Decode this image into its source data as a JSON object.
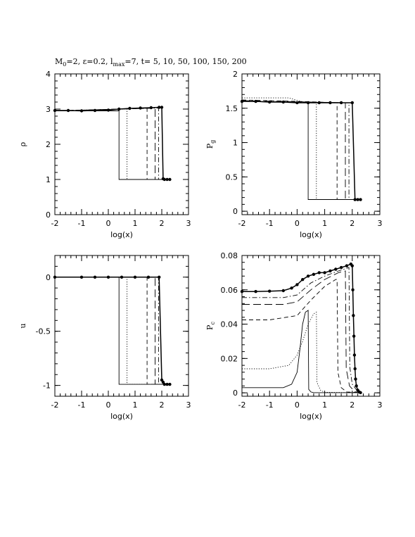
{
  "figure": {
    "title_parts": {
      "m": "M",
      "m_sub": "0",
      "eps": "=2, ε=0.2, l",
      "l_sub": "max",
      "rest": "=7, t= 5, 10, 50, 100, 150, 200"
    }
  },
  "chart_data": [
    {
      "type": "line",
      "id": "rho",
      "ylabel": "ρ",
      "xlabel": "log(x)",
      "xlim": [
        -2,
        3
      ],
      "ylim": [
        0,
        4
      ],
      "xticks": [
        "-2",
        "-1",
        "0",
        "1",
        "2",
        "3"
      ],
      "yticks": [
        "0",
        "1",
        "2",
        "3",
        "4"
      ],
      "series": [
        {
          "style": "solid",
          "values": [
            [
              -2,
              2.95
            ],
            [
              0.4,
              2.95
            ],
            [
              0.4,
              1.0
            ],
            [
              2.3,
              1.0
            ]
          ]
        },
        {
          "style": "dotted",
          "values": [
            [
              -2,
              2.95
            ],
            [
              0.7,
              3.0
            ],
            [
              0.7,
              1.0
            ],
            [
              2.3,
              1.0
            ]
          ]
        },
        {
          "style": "dashed",
          "values": [
            [
              -2,
              2.95
            ],
            [
              1.45,
              3.02
            ],
            [
              1.45,
              1.0
            ],
            [
              2.3,
              1.0
            ]
          ]
        },
        {
          "style": "longdash",
          "values": [
            [
              -2,
              2.95
            ],
            [
              1.75,
              3.03
            ],
            [
              1.75,
              1.0
            ],
            [
              2.3,
              1.0
            ]
          ]
        },
        {
          "style": "dashdot",
          "values": [
            [
              -2,
              2.95
            ],
            [
              1.88,
              3.03
            ],
            [
              1.88,
              1.0
            ],
            [
              2.3,
              1.0
            ]
          ]
        },
        {
          "style": "points",
          "values": [
            [
              -2,
              2.96
            ],
            [
              -1.5,
              2.96
            ],
            [
              -1,
              2.95
            ],
            [
              -0.5,
              2.96
            ],
            [
              0,
              2.97
            ],
            [
              0.4,
              3.0
            ],
            [
              0.8,
              3.02
            ],
            [
              1.2,
              3.03
            ],
            [
              1.6,
              3.04
            ],
            [
              1.9,
              3.05
            ],
            [
              2.0,
              3.05
            ],
            [
              2.05,
              1.02
            ],
            [
              2.1,
              1.0
            ],
            [
              2.2,
              1.0
            ],
            [
              2.3,
              1.0
            ]
          ]
        }
      ]
    },
    {
      "type": "line",
      "id": "pg",
      "ylabel": "P",
      "ylabel_sub": "g",
      "xlabel": "log(x)",
      "xlim": [
        -2,
        3
      ],
      "ylim": [
        -0.05,
        2
      ],
      "xticks": [
        "-2",
        "-1",
        "0",
        "1",
        "2",
        "3"
      ],
      "yticks": [
        "0",
        "0.5",
        "1",
        "1.5",
        "2"
      ],
      "series": [
        {
          "style": "solid",
          "values": [
            [
              -2,
              1.6
            ],
            [
              0.4,
              1.58
            ],
            [
              0.4,
              0.17
            ],
            [
              2.3,
              0.17
            ]
          ]
        },
        {
          "style": "dotted",
          "values": [
            [
              -2,
              1.65
            ],
            [
              -0.3,
              1.65
            ],
            [
              0.2,
              1.59
            ],
            [
              0.7,
              1.58
            ],
            [
              0.7,
              0.17
            ],
            [
              2.3,
              0.17
            ]
          ]
        },
        {
          "style": "dashed",
          "values": [
            [
              -2,
              1.62
            ],
            [
              0,
              1.6
            ],
            [
              1.45,
              1.58
            ],
            [
              1.45,
              0.17
            ],
            [
              2.3,
              0.17
            ]
          ]
        },
        {
          "style": "longdash",
          "values": [
            [
              -2,
              1.61
            ],
            [
              1.75,
              1.58
            ],
            [
              1.75,
              0.17
            ],
            [
              2.3,
              0.17
            ]
          ]
        },
        {
          "style": "dashdot",
          "values": [
            [
              -2,
              1.6
            ],
            [
              1.88,
              1.58
            ],
            [
              1.88,
              0.17
            ],
            [
              2.3,
              0.17
            ]
          ]
        },
        {
          "style": "points",
          "values": [
            [
              -2,
              1.6
            ],
            [
              -1.5,
              1.6
            ],
            [
              -1,
              1.59
            ],
            [
              -0.5,
              1.59
            ],
            [
              0,
              1.58
            ],
            [
              0.4,
              1.58
            ],
            [
              0.8,
              1.58
            ],
            [
              1.2,
              1.58
            ],
            [
              1.6,
              1.58
            ],
            [
              2.0,
              1.58
            ],
            [
              2.1,
              0.17
            ],
            [
              2.2,
              0.17
            ],
            [
              2.3,
              0.17
            ]
          ]
        }
      ]
    },
    {
      "type": "line",
      "id": "u",
      "ylabel": "u",
      "xlabel": "log(x)",
      "xlim": [
        -2,
        3
      ],
      "ylim": [
        -1.1,
        0.2
      ],
      "xticks": [
        "-2",
        "-1",
        "0",
        "1",
        "2",
        "3"
      ],
      "yticks": [
        "0",
        "-0.5",
        "-1"
      ],
      "ytick_values": [
        0,
        -0.5,
        -1
      ],
      "series": [
        {
          "style": "solid",
          "values": [
            [
              -2,
              0
            ],
            [
              0.4,
              0
            ],
            [
              0.4,
              -0.99
            ],
            [
              2.3,
              -0.99
            ]
          ]
        },
        {
          "style": "dotted",
          "values": [
            [
              -2,
              0
            ],
            [
              0.7,
              0
            ],
            [
              0.7,
              -0.99
            ],
            [
              2.3,
              -0.99
            ]
          ]
        },
        {
          "style": "dashed",
          "values": [
            [
              -2,
              0
            ],
            [
              1.45,
              0
            ],
            [
              1.45,
              -0.99
            ],
            [
              2.3,
              -0.99
            ]
          ]
        },
        {
          "style": "longdash",
          "values": [
            [
              -2,
              0
            ],
            [
              1.75,
              0
            ],
            [
              1.75,
              -0.99
            ],
            [
              2.3,
              -0.99
            ]
          ]
        },
        {
          "style": "dashdot",
          "values": [
            [
              -2,
              0
            ],
            [
              1.88,
              0
            ],
            [
              1.88,
              -0.99
            ],
            [
              2.3,
              -0.99
            ]
          ]
        },
        {
          "style": "points",
          "values": [
            [
              -2,
              0
            ],
            [
              -1,
              0
            ],
            [
              -0.5,
              0
            ],
            [
              0,
              0
            ],
            [
              0.5,
              0
            ],
            [
              1,
              0
            ],
            [
              1.5,
              0
            ],
            [
              1.9,
              0
            ],
            [
              2.0,
              -0.95
            ],
            [
              2.05,
              -0.97
            ],
            [
              2.1,
              -0.99
            ],
            [
              2.2,
              -0.99
            ],
            [
              2.3,
              -0.99
            ]
          ]
        }
      ]
    },
    {
      "type": "line",
      "id": "pc",
      "ylabel": "P",
      "ylabel_sub": "c",
      "xlabel": "log(x)",
      "xlim": [
        -2,
        3
      ],
      "ylim": [
        -0.002,
        0.08
      ],
      "xticks": [
        "-2",
        "-1",
        "0",
        "1",
        "2",
        "3"
      ],
      "yticks": [
        "0",
        "0.02",
        "0.04",
        "0.06",
        "0.08"
      ],
      "series": [
        {
          "style": "solid",
          "values": [
            [
              -2,
              0.003
            ],
            [
              -0.5,
              0.003
            ],
            [
              -0.2,
              0.005
            ],
            [
              0,
              0.012
            ],
            [
              0.1,
              0.025
            ],
            [
              0.2,
              0.04
            ],
            [
              0.3,
              0.047
            ],
            [
              0.4,
              0.048
            ],
            [
              0.42,
              0.002
            ],
            [
              0.5,
              0.0005
            ],
            [
              0.6,
              0.0001
            ],
            [
              2.3,
              0.0001
            ]
          ]
        },
        {
          "style": "dotted",
          "values": [
            [
              -2,
              0.014
            ],
            [
              -1,
              0.014
            ],
            [
              -0.3,
              0.016
            ],
            [
              0,
              0.022
            ],
            [
              0.2,
              0.03
            ],
            [
              0.4,
              0.04
            ],
            [
              0.6,
              0.046
            ],
            [
              0.7,
              0.047
            ],
            [
              0.72,
              0.006
            ],
            [
              0.85,
              0.0015
            ],
            [
              1.0,
              0.0003
            ],
            [
              2.3,
              0.0001
            ]
          ]
        },
        {
          "style": "dashed",
          "values": [
            [
              -2,
              0.0425
            ],
            [
              -1,
              0.0425
            ],
            [
              0,
              0.045
            ],
            [
              0.5,
              0.054
            ],
            [
              1.0,
              0.062
            ],
            [
              1.4,
              0.066
            ],
            [
              1.45,
              0.066
            ],
            [
              1.48,
              0.012
            ],
            [
              1.6,
              0.003
            ],
            [
              1.8,
              0.0005
            ],
            [
              2.3,
              0.0001
            ]
          ]
        },
        {
          "style": "longdash",
          "values": [
            [
              -2,
              0.0515
            ],
            [
              -0.5,
              0.0515
            ],
            [
              0,
              0.053
            ],
            [
              0.5,
              0.06
            ],
            [
              1.0,
              0.066
            ],
            [
              1.5,
              0.07
            ],
            [
              1.75,
              0.071
            ],
            [
              1.78,
              0.014
            ],
            [
              1.9,
              0.004
            ],
            [
              2.1,
              0.0006
            ],
            [
              2.3,
              0.0001
            ]
          ]
        },
        {
          "style": "dashdot",
          "values": [
            [
              -2,
              0.0555
            ],
            [
              -0.5,
              0.0555
            ],
            [
              0,
              0.057
            ],
            [
              0.5,
              0.064
            ],
            [
              1.0,
              0.068
            ],
            [
              1.5,
              0.071
            ],
            [
              1.88,
              0.073
            ],
            [
              1.91,
              0.015
            ],
            [
              2.0,
              0.005
            ],
            [
              2.2,
              0.0008
            ],
            [
              2.3,
              0.0001
            ]
          ]
        },
        {
          "style": "points",
          "values": [
            [
              -2,
              0.059
            ],
            [
              -1.5,
              0.059
            ],
            [
              -1,
              0.0592
            ],
            [
              -0.5,
              0.0595
            ],
            [
              -0.2,
              0.061
            ],
            [
              0,
              0.063
            ],
            [
              0.2,
              0.066
            ],
            [
              0.4,
              0.068
            ],
            [
              0.6,
              0.069
            ],
            [
              0.8,
              0.07
            ],
            [
              1.0,
              0.07
            ],
            [
              1.2,
              0.071
            ],
            [
              1.4,
              0.072
            ],
            [
              1.6,
              0.073
            ],
            [
              1.8,
              0.074
            ],
            [
              1.95,
              0.075
            ],
            [
              2.0,
              0.074
            ],
            [
              2.02,
              0.06
            ],
            [
              2.04,
              0.045
            ],
            [
              2.06,
              0.033
            ],
            [
              2.08,
              0.022
            ],
            [
              2.1,
              0.014
            ],
            [
              2.12,
              0.008
            ],
            [
              2.15,
              0.004
            ],
            [
              2.2,
              0.0015
            ],
            [
              2.25,
              0.0005
            ],
            [
              2.3,
              0.0001
            ]
          ]
        }
      ]
    }
  ]
}
